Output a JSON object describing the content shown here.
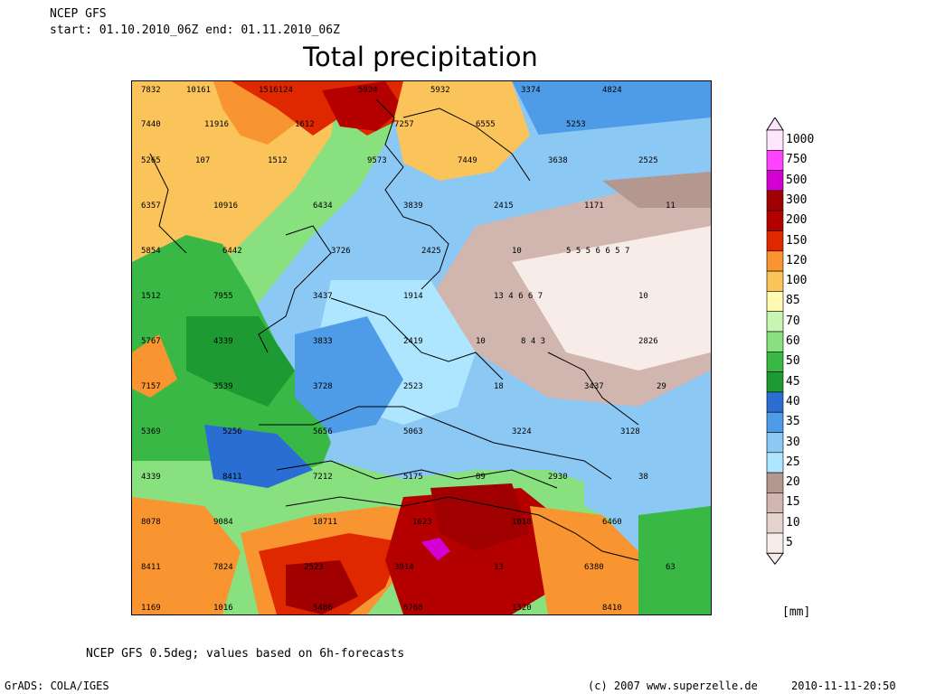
{
  "header": {
    "model": "NCEP GFS",
    "period": "start: 01.10.2010_06Z   end: 01.11.2010_06Z",
    "title": "Total precipitation"
  },
  "legend": {
    "levels": [
      "1000",
      "750",
      "500",
      "300",
      "200",
      "150",
      "120",
      "100",
      "85",
      "70",
      "60",
      "50",
      "45",
      "40",
      "35",
      "30",
      "25",
      "20",
      "15",
      "10",
      "5"
    ],
    "colors": [
      "#ffe6ff",
      "#ff44ff",
      "#d400d4",
      "#a00000",
      "#b50000",
      "#e02800",
      "#f89530",
      "#fbc45b",
      "#fffab0",
      "#c8f5b4",
      "#88e07e",
      "#39b846",
      "#1e9a32",
      "#2a6ed4",
      "#4e9ce8",
      "#8cc8f4",
      "#aee6ff",
      "#b49890",
      "#d0b6ae",
      "#e6d2cc",
      "#f8ece8"
    ],
    "units": "[mm]"
  },
  "footer": {
    "note": "NCEP GFS 0.5deg; values based on 6h-forecasts",
    "software": "GrADS: COLA/IGES",
    "copyright": "(c) 2007 www.superzelle.de",
    "timestamp": "2010-11-11-20:50"
  }
}
